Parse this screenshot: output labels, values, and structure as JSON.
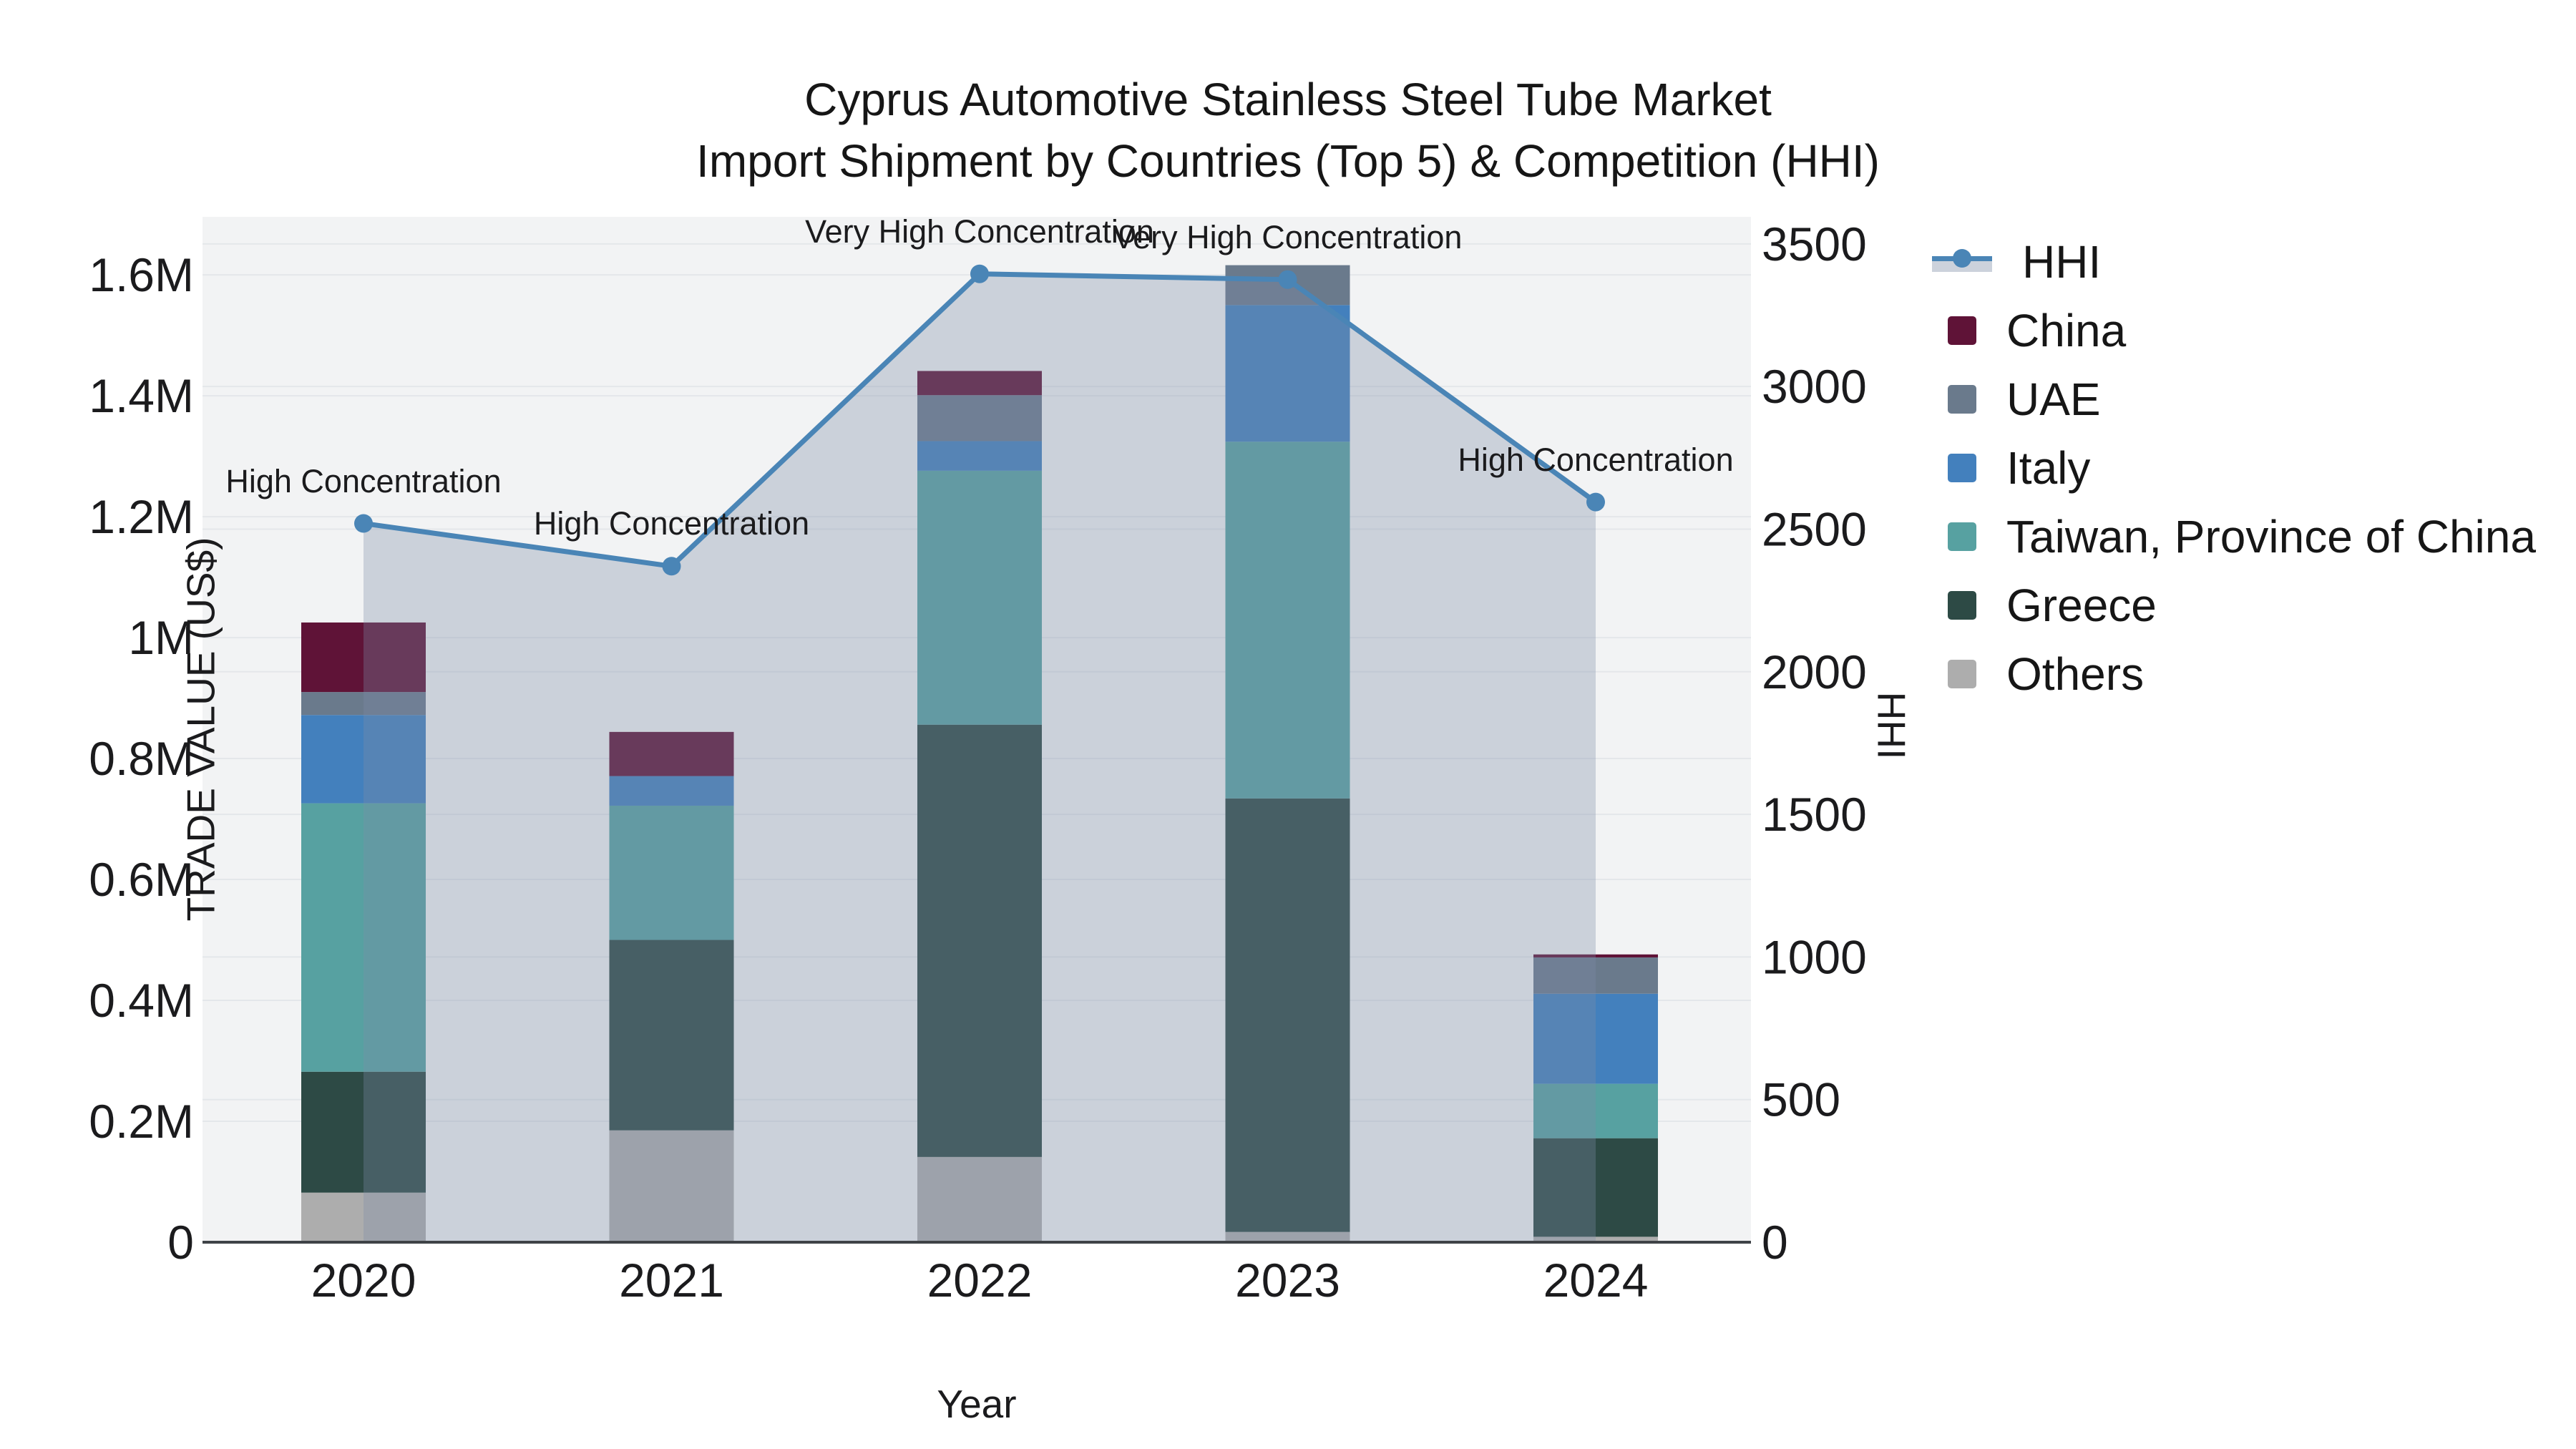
{
  "title": {
    "line1": "Cyprus Automotive Stainless Steel Tube Market",
    "line2": "Import Shipment by Countries (Top 5) & Competition (HHI)"
  },
  "axes": {
    "x": {
      "title": "Year",
      "tick_labels": [
        "2020",
        "2021",
        "2022",
        "2023",
        "2024"
      ]
    },
    "y_left": {
      "title": "TRADE VALUE (US$)",
      "tick_labels": [
        "0",
        "0.2M",
        "0.4M",
        "0.6M",
        "0.8M",
        "1M",
        "1.2M",
        "1.4M",
        "1.6M"
      ],
      "tick_values": [
        0,
        200000,
        400000,
        600000,
        800000,
        1000000,
        1200000,
        1400000,
        1600000
      ],
      "range": [
        0,
        1696000
      ]
    },
    "y_right": {
      "title": "HHI",
      "tick_labels": [
        "0",
        "500",
        "1000",
        "1500",
        "2000",
        "2500",
        "3000",
        "3500"
      ],
      "tick_values": [
        0,
        500,
        1000,
        1500,
        2000,
        2500,
        3000,
        3500
      ],
      "range": [
        0,
        3595
      ]
    }
  },
  "legend": {
    "items": [
      {
        "label": "HHI",
        "type": "line",
        "color": "#4a85b6",
        "fill": "#ccd2dc"
      },
      {
        "label": "China",
        "type": "square",
        "color": "#5f1337"
      },
      {
        "label": "UAE",
        "type": "square",
        "color": "#6a7a8c"
      },
      {
        "label": "Italy",
        "type": "square",
        "color": "#4380bd"
      },
      {
        "label": "Taiwan, Province of China",
        "type": "square",
        "color": "#57a1a1"
      },
      {
        "label": "Greece",
        "type": "square",
        "color": "#2d4a45"
      },
      {
        "label": "Others",
        "type": "square",
        "color": "#adadad"
      }
    ]
  },
  "colors": {
    "hhi_line": "#4a85b6",
    "area_fill": "rgba(124,141,167,0.33)",
    "plot_bg": "#f2f3f4",
    "gridline": "#e4e7ea",
    "axis_line": "#3f4347",
    "text": "#1b1b1d"
  },
  "chart_data": [
    {
      "type": "bar",
      "stacked": true,
      "categories": [
        "2020",
        "2021",
        "2022",
        "2023",
        "2024"
      ],
      "xlabel": "Year",
      "ylabel": "TRADE VALUE (US$)",
      "ylim": [
        0,
        1696000
      ],
      "series": [
        {
          "name": "Others",
          "color": "#adadad",
          "values": [
            82000,
            185000,
            141000,
            17000,
            9000
          ]
        },
        {
          "name": "Greece",
          "color": "#2d4a45",
          "values": [
            200000,
            315000,
            715000,
            717000,
            163000
          ]
        },
        {
          "name": "Taiwan, Province of China",
          "color": "#57a1a1",
          "values": [
            444000,
            222000,
            420000,
            590000,
            90000
          ]
        },
        {
          "name": "Italy",
          "color": "#4380bd",
          "values": [
            146000,
            49000,
            49000,
            226000,
            149000
          ]
        },
        {
          "name": "UAE",
          "color": "#6a7a8c",
          "values": [
            38000,
            0,
            76000,
            66000,
            60000
          ]
        },
        {
          "name": "China",
          "color": "#5f1337",
          "values": [
            115000,
            73000,
            40000,
            0,
            5000
          ]
        }
      ],
      "totals": [
        1025000,
        844000,
        1441000,
        1616000,
        476000
      ]
    },
    {
      "type": "line",
      "name": "HHI",
      "x": [
        "2020",
        "2021",
        "2022",
        "2023",
        "2024"
      ],
      "values": [
        2520,
        2370,
        3395,
        3375,
        2595
      ],
      "ylabel": "HHI",
      "ylim": [
        0,
        3595
      ],
      "fill": "tozeroy",
      "legend_position": "right",
      "annotations": [
        {
          "x": "2020",
          "text": "High Concentration"
        },
        {
          "x": "2021",
          "text": "High Concentration"
        },
        {
          "x": "2022",
          "text": "Very High Concentration"
        },
        {
          "x": "2023",
          "text": "Very High Concentration"
        },
        {
          "x": "2024",
          "text": "High Concentration"
        }
      ]
    }
  ]
}
